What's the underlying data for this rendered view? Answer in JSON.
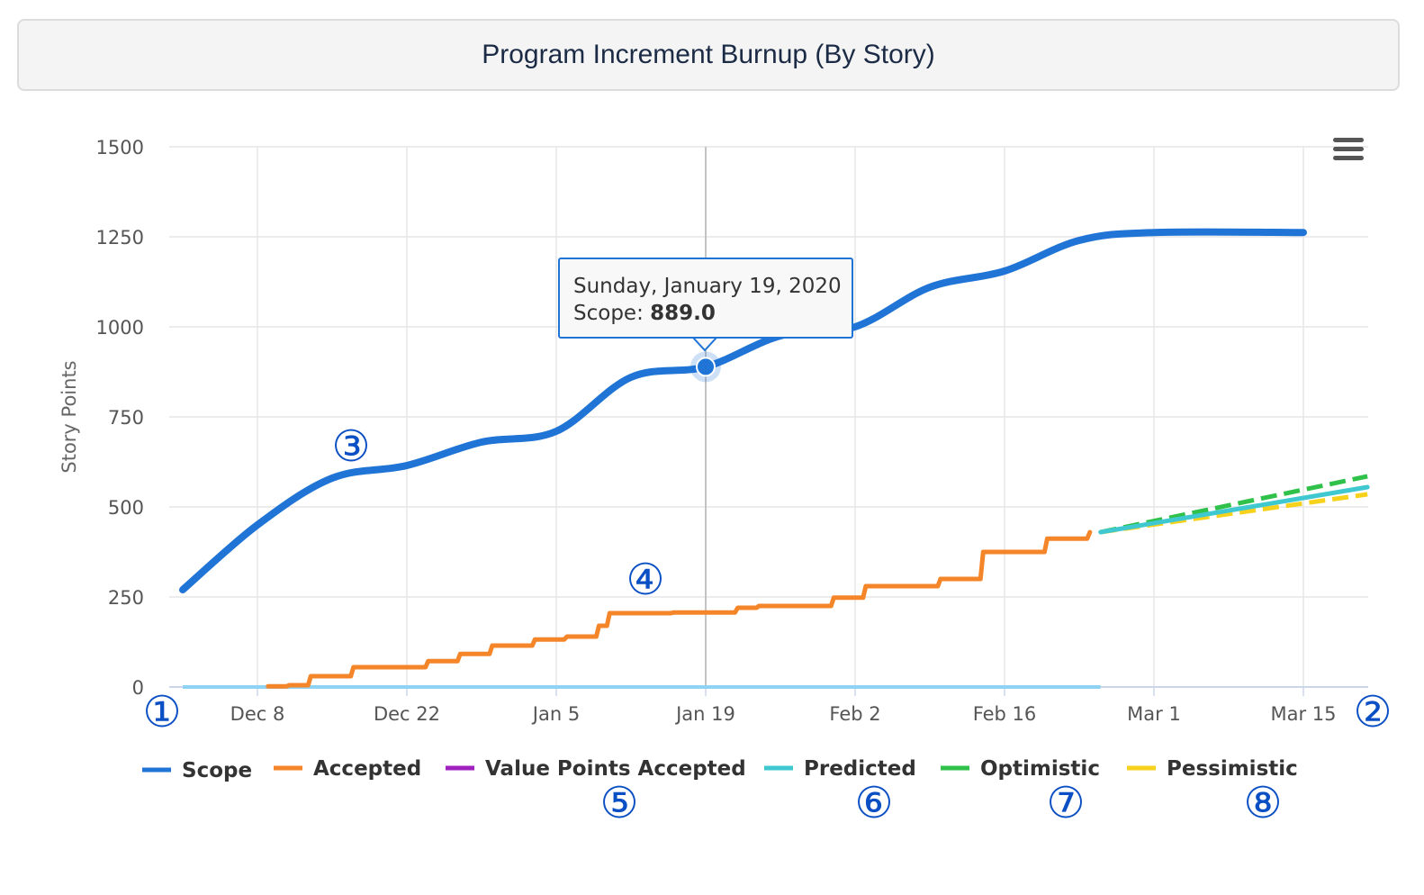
{
  "title": "Program Increment Burnup (By Story)",
  "chart_data": {
    "type": "line",
    "ylabel": "Story Points",
    "ylim": [
      0,
      1500
    ],
    "yticks": [
      0,
      250,
      500,
      750,
      1000,
      1250,
      1500
    ],
    "xticks": [
      "Dec 8",
      "Dec 22",
      "Jan 5",
      "Jan 19",
      "Feb 2",
      "Feb 16",
      "Mar 1",
      "Mar 15"
    ],
    "grid": true,
    "legend_position": "bottom",
    "series": [
      {
        "name": "Scope",
        "color": "#1f74d6",
        "style": "solid",
        "smooth": true,
        "points": [
          [
            "Dec 1",
            270
          ],
          [
            "Dec 8",
            450
          ],
          [
            "Dec 15",
            580
          ],
          [
            "Dec 22",
            615
          ],
          [
            "Dec 29",
            680
          ],
          [
            "Jan 5",
            710
          ],
          [
            "Jan 12",
            860
          ],
          [
            "Jan 19",
            889
          ],
          [
            "Jan 26",
            975
          ],
          [
            "Feb 2",
            1000
          ],
          [
            "Feb 9",
            1110
          ],
          [
            "Feb 16",
            1155
          ],
          [
            "Feb 23",
            1240
          ],
          [
            "Mar 1",
            1262
          ],
          [
            "Mar 15",
            1262
          ]
        ]
      },
      {
        "name": "Accepted",
        "color": "#f58529",
        "style": "step",
        "points": [
          [
            "Dec 9",
            2
          ],
          [
            "Dec 11",
            5
          ],
          [
            "Dec 13",
            30
          ],
          [
            "Dec 17",
            55
          ],
          [
            "Dec 24",
            72
          ],
          [
            "Dec 27",
            92
          ],
          [
            "Dec 30",
            115
          ],
          [
            "Jan 3",
            132
          ],
          [
            "Jan 6",
            140
          ],
          [
            "Jan 9",
            170
          ],
          [
            "Jan 10",
            205
          ],
          [
            "Jan 16",
            207
          ],
          [
            "Jan 22",
            220
          ],
          [
            "Jan 24",
            225
          ],
          [
            "Jan 31",
            248
          ],
          [
            "Feb 3",
            280
          ],
          [
            "Feb 10",
            300
          ],
          [
            "Feb 14",
            375
          ],
          [
            "Feb 20",
            412
          ],
          [
            "Feb 24",
            430
          ]
        ]
      },
      {
        "name": "Value Points Accepted",
        "color": "#a020c0",
        "style": "solid",
        "points": []
      },
      {
        "name": "Predicted",
        "color": "#3fc8d0",
        "style": "solid",
        "points": [
          [
            "Feb 25",
            430
          ],
          [
            "Mar 21",
            555
          ]
        ]
      },
      {
        "name": "Optimistic",
        "color": "#2fc14a",
        "style": "dashed",
        "points": [
          [
            "Feb 25",
            430
          ],
          [
            "Mar 21",
            585
          ]
        ]
      },
      {
        "name": "Pessimistic",
        "color": "#f7d21c",
        "style": "dashed",
        "points": [
          [
            "Feb 25",
            430
          ],
          [
            "Mar 21",
            535
          ]
        ]
      }
    ],
    "baseline": {
      "color": "#8fd3f4",
      "value": 0,
      "from": "Dec 1",
      "to": "Feb 25"
    },
    "tooltip": {
      "date": "Sunday, January 19, 2020",
      "series": "Scope",
      "label": "Scope:",
      "value": "889.0"
    },
    "markers": [
      "①",
      "②",
      "③",
      "④",
      "⑤",
      "⑥",
      "⑦",
      "⑧"
    ]
  }
}
